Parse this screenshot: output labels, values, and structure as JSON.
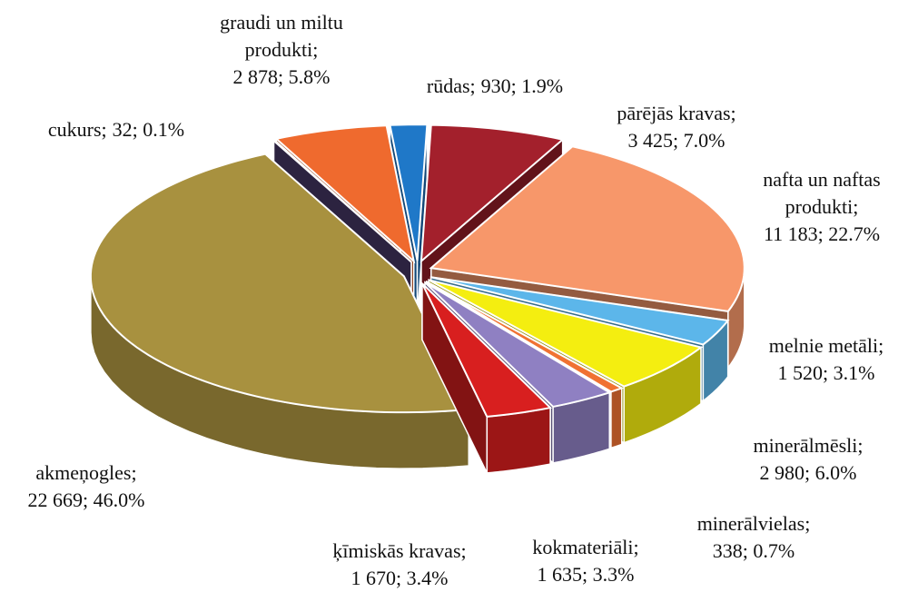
{
  "chart_data": {
    "type": "pie3d",
    "categories": [
      "rūdas;",
      "pārējās kravas;",
      "nafta un naftas produkti;",
      "melnie metāli;",
      "minerālmēsli;",
      "minerālvielas;",
      "kokmateriāli;",
      "ķīmiskās kravas;",
      "akmeņogles;",
      "cukurs;",
      "graudi un miltu produkti;"
    ],
    "values": [
      930,
      3425,
      11183,
      1520,
      2980,
      338,
      1635,
      1670,
      22669,
      32,
      2878
    ],
    "value_labels": [
      "930; 1.9%",
      "3 425; 7.0%",
      "11 183; 22.7%",
      "1 520; 3.1%",
      "2 980; 6.0%",
      "338; 0.7%",
      "1 635; 3.3%",
      "1 670; 3.4%",
      "22 669; 46.0%",
      "32; 0.1%",
      "2 878; 5.8%"
    ],
    "colors": [
      "#1f78c8",
      "#a3202c",
      "#f7976a",
      "#5cb6ea",
      "#f4ee10",
      "#f07232",
      "#8f80c2",
      "#d81f1f",
      "#a8913f",
      "#4a3b6b",
      "#ef6a2e"
    ]
  }
}
